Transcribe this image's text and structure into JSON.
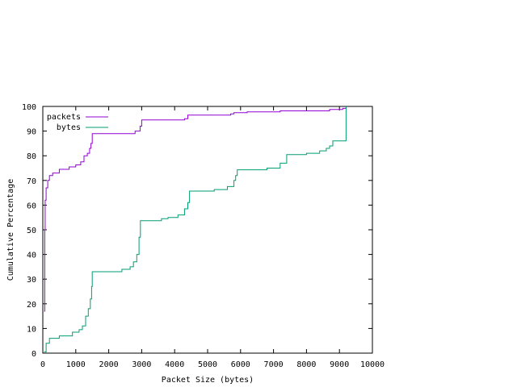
{
  "chart_data": {
    "type": "line",
    "title": "",
    "xlabel": "Packet Size (bytes)",
    "ylabel": "Cumulative Percentage",
    "xlim": [
      0,
      10000
    ],
    "ylim": [
      0,
      100
    ],
    "x_ticks": [
      0,
      1000,
      2000,
      3000,
      4000,
      5000,
      6000,
      7000,
      8000,
      9000,
      10000
    ],
    "y_ticks": [
      0,
      10,
      20,
      30,
      40,
      50,
      60,
      70,
      80,
      90,
      100
    ],
    "grid": false,
    "legend_position": "top-left",
    "step": true,
    "series": [
      {
        "name": "packets",
        "color": "#9400d3",
        "points": [
          [
            40,
            17
          ],
          [
            60,
            50
          ],
          [
            70,
            62
          ],
          [
            100,
            67
          ],
          [
            150,
            70
          ],
          [
            200,
            72
          ],
          [
            300,
            73
          ],
          [
            500,
            74.5
          ],
          [
            800,
            75.5
          ],
          [
            1000,
            76.3
          ],
          [
            1150,
            77.5
          ],
          [
            1250,
            80
          ],
          [
            1350,
            81
          ],
          [
            1420,
            83
          ],
          [
            1460,
            85
          ],
          [
            1500,
            89
          ],
          [
            1600,
            89
          ],
          [
            2400,
            89
          ],
          [
            2800,
            90
          ],
          [
            2950,
            92
          ],
          [
            3000,
            94.5
          ],
          [
            4300,
            95
          ],
          [
            4400,
            96.5
          ],
          [
            5700,
            97
          ],
          [
            5800,
            97.5
          ],
          [
            6200,
            97.8
          ],
          [
            7200,
            98.2
          ],
          [
            8700,
            98.8
          ],
          [
            9100,
            99.2
          ],
          [
            9200,
            100
          ]
        ]
      },
      {
        "name": "bytes",
        "color": "#009e73",
        "points": [
          [
            40,
            0.5
          ],
          [
            100,
            4
          ],
          [
            200,
            6
          ],
          [
            500,
            7
          ],
          [
            900,
            8.5
          ],
          [
            1100,
            9.5
          ],
          [
            1200,
            11
          ],
          [
            1300,
            15
          ],
          [
            1380,
            18
          ],
          [
            1440,
            22
          ],
          [
            1480,
            27
          ],
          [
            1500,
            33
          ],
          [
            2400,
            34
          ],
          [
            2650,
            35
          ],
          [
            2750,
            37
          ],
          [
            2850,
            40
          ],
          [
            2920,
            47
          ],
          [
            2960,
            53.7
          ],
          [
            3600,
            54.5
          ],
          [
            3800,
            55
          ],
          [
            4100,
            56
          ],
          [
            4300,
            58.5
          ],
          [
            4400,
            61
          ],
          [
            4450,
            65.7
          ],
          [
            5200,
            66.3
          ],
          [
            5600,
            67.5
          ],
          [
            5800,
            70
          ],
          [
            5850,
            72
          ],
          [
            5900,
            74.3
          ],
          [
            6800,
            75
          ],
          [
            7200,
            77
          ],
          [
            7400,
            80.5
          ],
          [
            8000,
            81
          ],
          [
            8400,
            82
          ],
          [
            8600,
            83
          ],
          [
            8700,
            84
          ],
          [
            8800,
            86
          ],
          [
            9150,
            86
          ],
          [
            9200,
            100
          ]
        ]
      }
    ]
  }
}
